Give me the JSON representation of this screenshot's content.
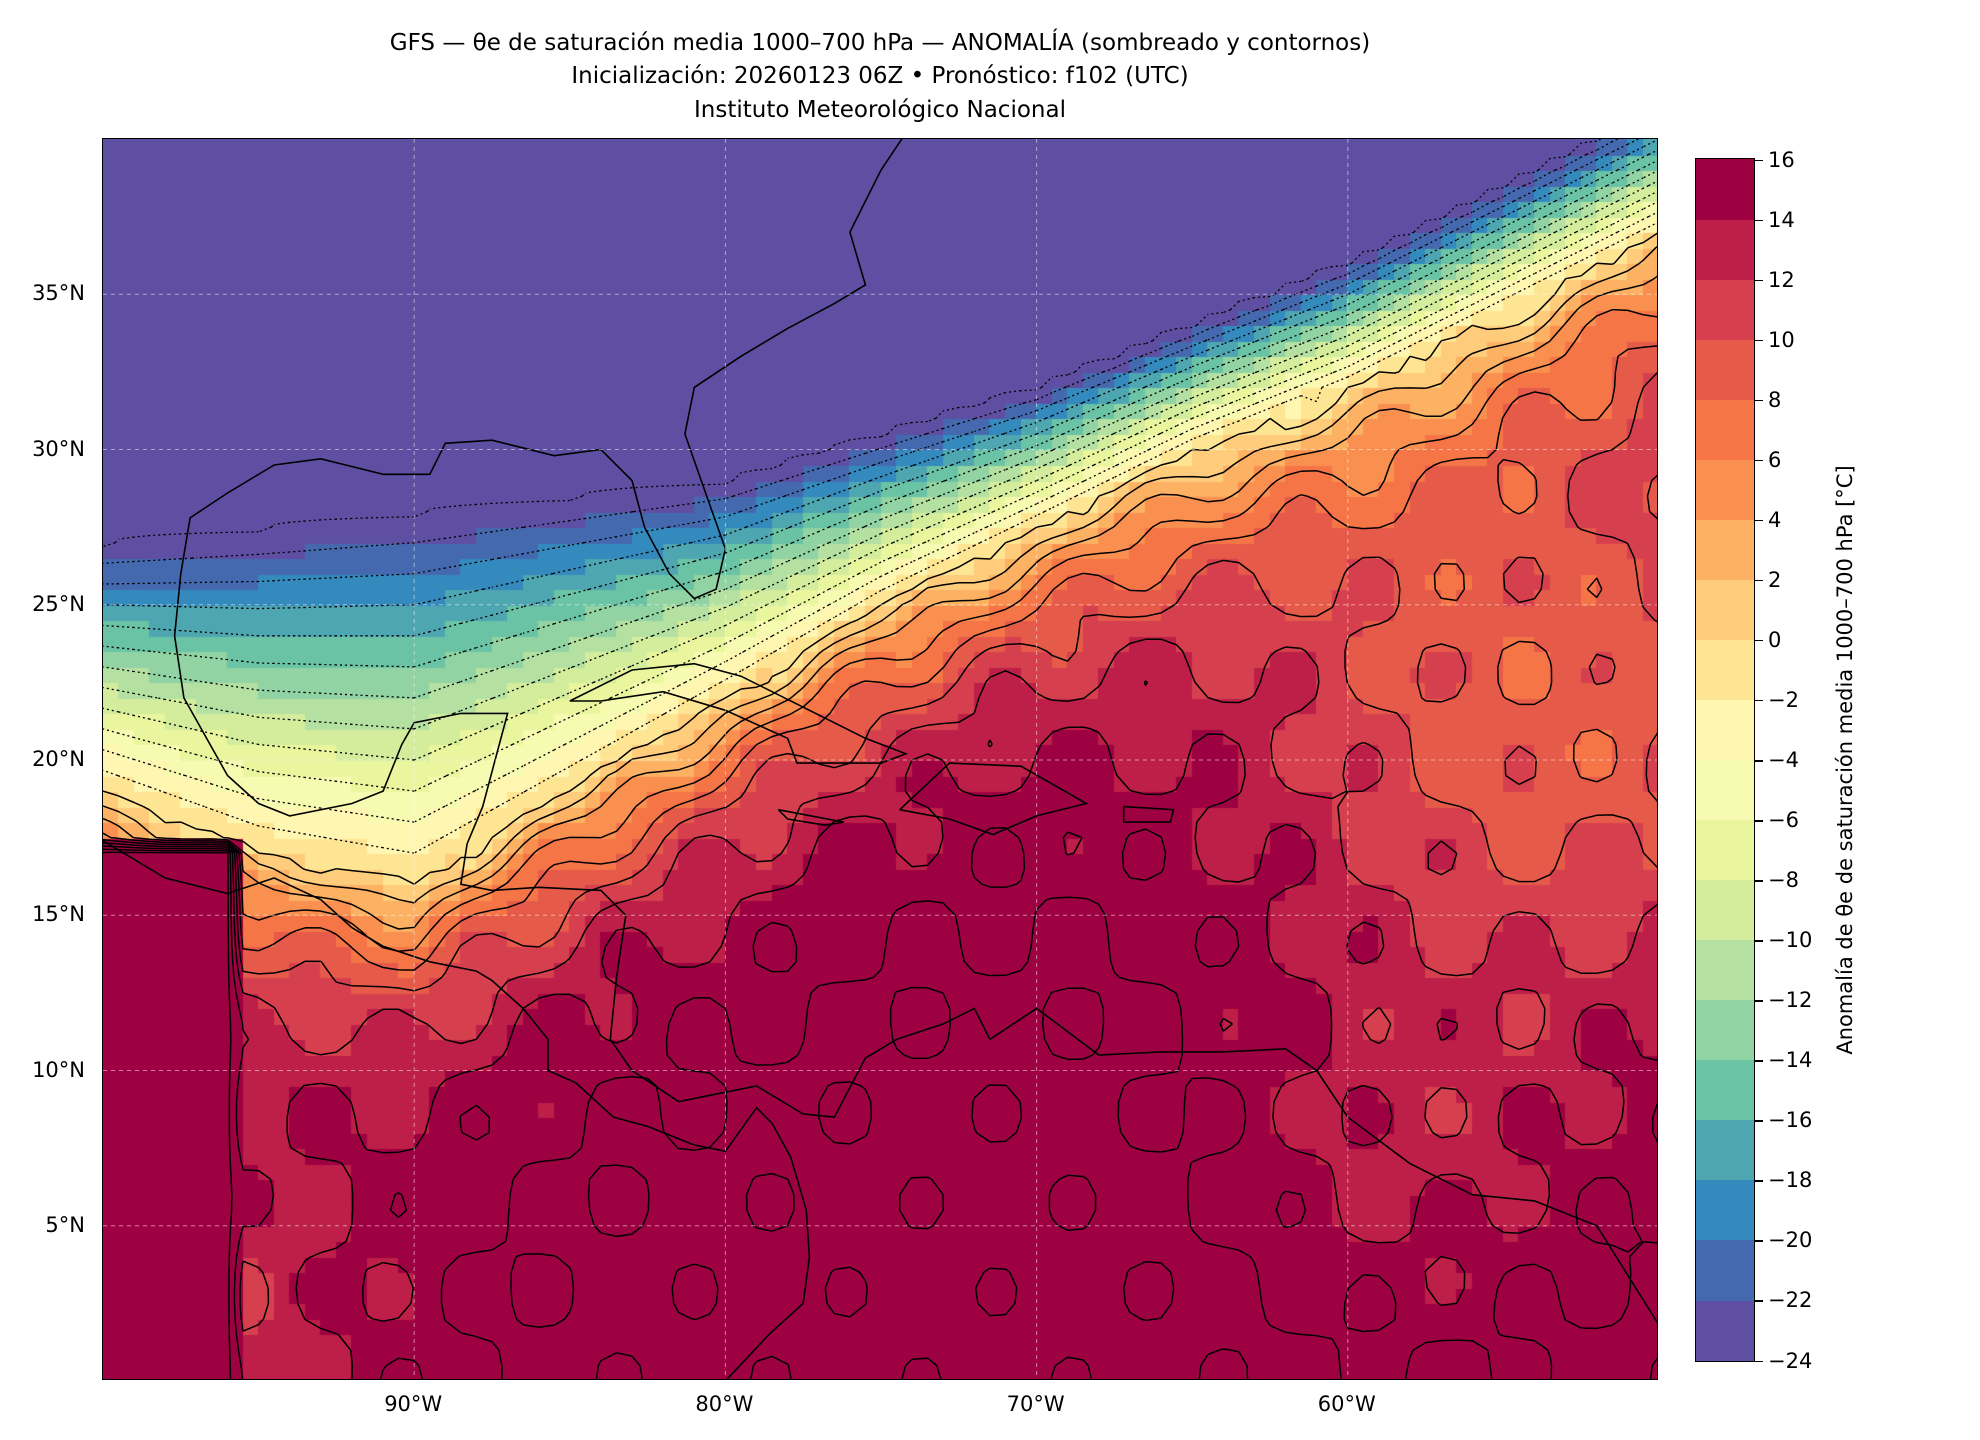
{
  "title": {
    "line1": "GFS — θe de saturación media 1000–700 hPa — ANOMALÍA (sombreado y contornos)",
    "line2": "Inicialización: 20260123 06Z   •   Pronóstico: f102 (UTC)",
    "line3": "Instituto Meteorológico Nacional"
  },
  "chart_data": {
    "type": "heatmap",
    "title": "GFS — θe de saturación media 1000–700 hPa — ANOMALÍA (sombreado y contornos)",
    "xlim": [
      -100,
      -50
    ],
    "ylim": [
      0,
      40
    ],
    "xticks": [
      -90,
      -80,
      -70,
      -60
    ],
    "xtick_labels": [
      "90°W",
      "80°W",
      "70°W",
      "60°W"
    ],
    "yticks": [
      5,
      10,
      15,
      20,
      25,
      30,
      35
    ],
    "ytick_labels": [
      "5°N",
      "10°N",
      "15°N",
      "20°N",
      "25°N",
      "30°N",
      "35°N"
    ],
    "grid": true,
    "colorbar": {
      "label": "Anomalía de θe de saturación media 1000–700 hPa [°C]",
      "levels": [
        -24,
        -22,
        -20,
        -18,
        -16,
        -14,
        -12,
        -10,
        -8,
        -6,
        -4,
        -2,
        0,
        2,
        4,
        6,
        8,
        10,
        12,
        14,
        16
      ],
      "tick_labels": [
        "−24",
        "−22",
        "−20",
        "−18",
        "−16",
        "−14",
        "−12",
        "−10",
        "−8",
        "−6",
        "−4",
        "−2",
        "0",
        "2",
        "4",
        "6",
        "8",
        "10",
        "12",
        "14",
        "16"
      ],
      "colors": [
        "#5e4fa2",
        "#4569ae",
        "#3489bd",
        "#4ea6b0",
        "#6ac3a5",
        "#92d3a3",
        "#b4e0a2",
        "#d3ed9c",
        "#e9f69e",
        "#f7fbb2",
        "#fef6b1",
        "#fee593",
        "#fecc7b",
        "#fdb163",
        "#f9904f",
        "#f57547",
        "#e65a4a",
        "#d6404e",
        "#bd1f48",
        "#9e0142"
      ]
    },
    "contour_levels": [
      -24,
      -22,
      -20,
      -18,
      -16,
      -14,
      -12,
      -10,
      -8,
      -6,
      -4,
      -2,
      0,
      2,
      4,
      6,
      8,
      10,
      12,
      14,
      16
    ],
    "field_description_points": {
      "cold_edge_lat_at_lon": {
        "lon": [
          -100,
          -90,
          -80,
          -70,
          -60,
          -52,
          -50
        ],
        "lat": [
          27,
          28,
          29,
          32,
          36,
          40,
          41
        ]
      },
      "zero_line_lat_at_lon": {
        "lon": [
          -100,
          -95,
          -90,
          -85,
          -80,
          -75,
          -70,
          -65,
          -60,
          -55,
          -50
        ],
        "lat": [
          19,
          17,
          16,
          19,
          22,
          25,
          27.5,
          30,
          32,
          34.5,
          37
        ]
      }
    }
  }
}
